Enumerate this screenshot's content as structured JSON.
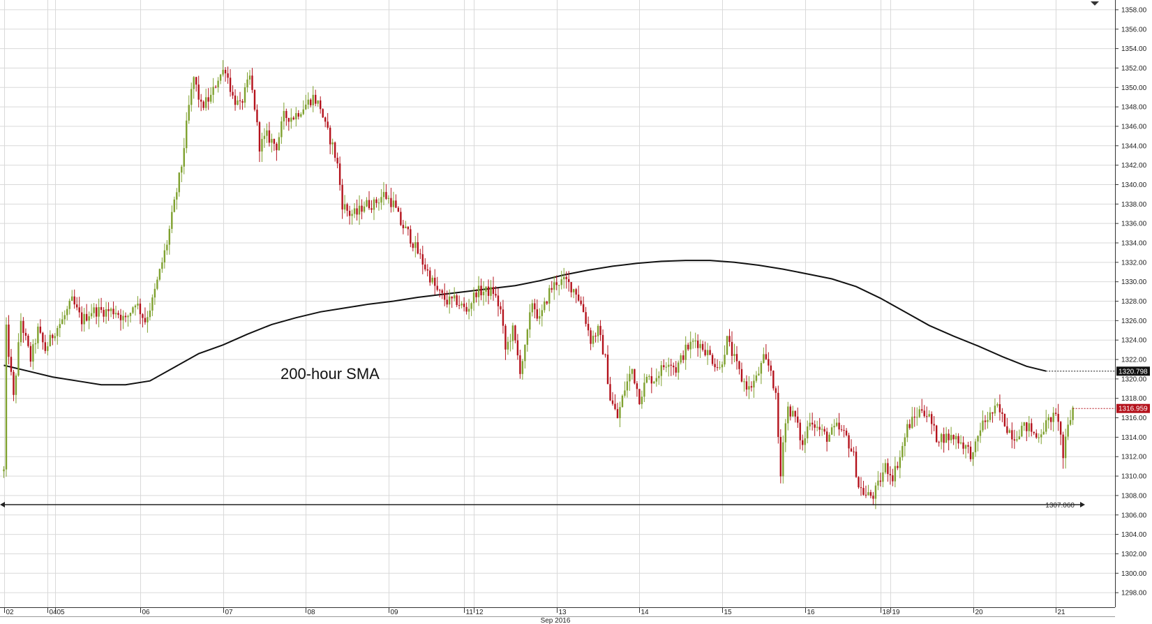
{
  "chart_data": {
    "type": "candlestick",
    "colors": {
      "up": "#7fa12f",
      "down": "#b4121c",
      "sma": "#111111",
      "grid": "#d9d9d9",
      "support": "#222222"
    },
    "y_axis": {
      "ylim": [
        1296.5,
        1359
      ],
      "ticks": [
        1298,
        1300,
        1302,
        1304,
        1306,
        1308,
        1310,
        1312,
        1314,
        1316,
        1318,
        1320,
        1322,
        1324,
        1326,
        1328,
        1330,
        1332,
        1334,
        1336,
        1338,
        1340,
        1342,
        1344,
        1346,
        1348,
        1350,
        1352,
        1354,
        1356,
        1358
      ],
      "tick_labels": [
        "1298.00",
        "1300.00",
        "1302.00",
        "1304.00",
        "1306.00",
        "1308.00",
        "1310.00",
        "1312.00",
        "1314.00",
        "1316.00",
        "1318.00",
        "1320.00",
        "1322.00",
        "1324.00",
        "1326.00",
        "1328.00",
        "1330.00",
        "1332.00",
        "1334.00",
        "1336.00",
        "1338.00",
        "1340.00",
        "1342.00",
        "1344.00",
        "1346.00",
        "1348.00",
        "1350.00",
        "1352.00",
        "1354.00",
        "1356.00",
        "1358.00"
      ]
    },
    "x_axis": {
      "caption": "Sep 2016",
      "days": [
        {
          "label": "02",
          "bar": 0
        },
        {
          "label": "04",
          "bar": 18
        },
        {
          "label": "05",
          "bar": 21
        },
        {
          "label": "06",
          "bar": 56
        },
        {
          "label": "07",
          "bar": 90
        },
        {
          "label": "08",
          "bar": 124
        },
        {
          "label": "09",
          "bar": 158
        },
        {
          "label": "11",
          "bar": 189
        },
        {
          "label": "12",
          "bar": 193
        },
        {
          "label": "13",
          "bar": 227
        },
        {
          "label": "14",
          "bar": 261
        },
        {
          "label": "15",
          "bar": 295
        },
        {
          "label": "16",
          "bar": 329
        },
        {
          "label": "18",
          "bar": 360
        },
        {
          "label": "19",
          "bar": 364
        },
        {
          "label": "20",
          "bar": 398
        },
        {
          "label": "21",
          "bar": 432
        }
      ]
    },
    "price_path": [
      [
        0,
        1310.5
      ],
      [
        1,
        1325
      ],
      [
        4,
        1318
      ],
      [
        7,
        1326
      ],
      [
        11,
        1322
      ],
      [
        14,
        1325
      ],
      [
        17,
        1323
      ],
      [
        21,
        1325
      ],
      [
        24,
        1326
      ],
      [
        28,
        1328
      ],
      [
        32,
        1326
      ],
      [
        36,
        1327
      ],
      [
        41,
        1327
      ],
      [
        46,
        1327
      ],
      [
        50,
        1326
      ],
      [
        54,
        1328
      ],
      [
        58,
        1326
      ],
      [
        61,
        1328
      ],
      [
        64,
        1331
      ],
      [
        67,
        1334
      ],
      [
        70,
        1338
      ],
      [
        73,
        1342
      ],
      [
        76,
        1348
      ],
      [
        78,
        1351
      ],
      [
        81,
        1348
      ],
      [
        85,
        1349
      ],
      [
        88,
        1351
      ],
      [
        91,
        1352
      ],
      [
        94,
        1349
      ],
      [
        97,
        1348
      ],
      [
        101,
        1351
      ],
      [
        103,
        1348
      ],
      [
        105,
        1344
      ],
      [
        108,
        1345
      ],
      [
        112,
        1344
      ],
      [
        115,
        1347
      ],
      [
        119,
        1347
      ],
      [
        123,
        1348
      ],
      [
        127,
        1349
      ],
      [
        130,
        1348
      ],
      [
        132,
        1346
      ],
      [
        135,
        1344
      ],
      [
        137,
        1342
      ],
      [
        139,
        1338
      ],
      [
        142,
        1337
      ],
      [
        145,
        1337
      ],
      [
        148,
        1338
      ],
      [
        152,
        1338
      ],
      [
        156,
        1339
      ],
      [
        160,
        1338
      ],
      [
        163,
        1336
      ],
      [
        166,
        1335
      ],
      [
        170,
        1333
      ],
      [
        174,
        1331
      ],
      [
        178,
        1329
      ],
      [
        182,
        1328
      ],
      [
        186,
        1328
      ],
      [
        190,
        1327
      ],
      [
        194,
        1329
      ],
      [
        198,
        1329
      ],
      [
        201,
        1329
      ],
      [
        204,
        1327
      ],
      [
        206,
        1323
      ],
      [
        209,
        1325
      ],
      [
        212,
        1321
      ],
      [
        214,
        1323
      ],
      [
        217,
        1328
      ],
      [
        220,
        1326
      ],
      [
        224,
        1329
      ],
      [
        227,
        1330
      ],
      [
        231,
        1330
      ],
      [
        235,
        1329
      ],
      [
        238,
        1327
      ],
      [
        241,
        1324
      ],
      [
        244,
        1325
      ],
      [
        247,
        1322
      ],
      [
        249,
        1318
      ],
      [
        252,
        1316
      ],
      [
        255,
        1319
      ],
      [
        258,
        1321
      ],
      [
        261,
        1318
      ],
      [
        264,
        1320
      ],
      [
        267,
        1320
      ],
      [
        270,
        1321
      ],
      [
        273,
        1322
      ],
      [
        276,
        1321
      ],
      [
        280,
        1323
      ],
      [
        284,
        1324
      ],
      [
        288,
        1323
      ],
      [
        291,
        1322
      ],
      [
        294,
        1321
      ],
      [
        297,
        1324
      ],
      [
        300,
        1322
      ],
      [
        303,
        1320
      ],
      [
        306,
        1319
      ],
      [
        309,
        1320
      ],
      [
        312,
        1322
      ],
      [
        315,
        1321
      ],
      [
        317,
        1318
      ],
      [
        319,
        1310
      ],
      [
        320,
        1314
      ],
      [
        322,
        1317
      ],
      [
        325,
        1316
      ],
      [
        328,
        1313
      ],
      [
        331,
        1316
      ],
      [
        334,
        1315
      ],
      [
        338,
        1314
      ],
      [
        342,
        1315
      ],
      [
        346,
        1314
      ],
      [
        349,
        1312
      ],
      [
        351,
        1309
      ],
      [
        354,
        1308
      ],
      [
        357,
        1308
      ],
      [
        359,
        1309
      ],
      [
        362,
        1311
      ],
      [
        365,
        1310
      ],
      [
        368,
        1312
      ],
      [
        371,
        1315
      ],
      [
        374,
        1316
      ],
      [
        377,
        1317
      ],
      [
        380,
        1316
      ],
      [
        383,
        1314
      ],
      [
        387,
        1314
      ],
      [
        391,
        1314
      ],
      [
        395,
        1313
      ],
      [
        398,
        1312
      ],
      [
        401,
        1315
      ],
      [
        404,
        1316
      ],
      [
        408,
        1317
      ],
      [
        412,
        1315
      ],
      [
        415,
        1314
      ],
      [
        418,
        1315
      ],
      [
        421,
        1315
      ],
      [
        424,
        1314
      ],
      [
        427,
        1315
      ],
      [
        430,
        1316
      ],
      [
        433,
        1316
      ],
      [
        435,
        1312
      ],
      [
        437,
        1315
      ],
      [
        439,
        1317
      ]
    ],
    "sma": {
      "name": "200-hour SMA",
      "points": [
        [
          0,
          1321.4
        ],
        [
          10,
          1320.8
        ],
        [
          20,
          1320.2
        ],
        [
          30,
          1319.8
        ],
        [
          40,
          1319.4
        ],
        [
          50,
          1319.4
        ],
        [
          60,
          1319.8
        ],
        [
          70,
          1321.2
        ],
        [
          80,
          1322.6
        ],
        [
          90,
          1323.5
        ],
        [
          100,
          1324.6
        ],
        [
          110,
          1325.6
        ],
        [
          120,
          1326.3
        ],
        [
          130,
          1326.9
        ],
        [
          140,
          1327.3
        ],
        [
          150,
          1327.7
        ],
        [
          160,
          1328.0
        ],
        [
          170,
          1328.4
        ],
        [
          180,
          1328.7
        ],
        [
          190,
          1329.0
        ],
        [
          200,
          1329.3
        ],
        [
          210,
          1329.6
        ],
        [
          220,
          1330.1
        ],
        [
          230,
          1330.7
        ],
        [
          240,
          1331.2
        ],
        [
          250,
          1331.6
        ],
        [
          260,
          1331.9
        ],
        [
          270,
          1332.1
        ],
        [
          280,
          1332.2
        ],
        [
          290,
          1332.2
        ],
        [
          300,
          1332.0
        ],
        [
          310,
          1331.7
        ],
        [
          320,
          1331.3
        ],
        [
          330,
          1330.8
        ],
        [
          340,
          1330.3
        ],
        [
          350,
          1329.5
        ],
        [
          360,
          1328.3
        ],
        [
          370,
          1326.9
        ],
        [
          380,
          1325.5
        ],
        [
          390,
          1324.4
        ],
        [
          400,
          1323.4
        ],
        [
          410,
          1322.3
        ],
        [
          420,
          1321.3
        ],
        [
          428,
          1320.8
        ]
      ]
    },
    "support": {
      "value": 1307.06,
      "label": "1307.060"
    },
    "sma_value_tag": {
      "value": 1320.798,
      "label": "1320.798",
      "bg": "#111111",
      "fg": "#ffffff"
    },
    "price_tag": {
      "value": 1316.959,
      "label": "1316.959",
      "bg": "#b4121c",
      "fg": "#ffffff"
    },
    "annotation": "200-hour SMA"
  }
}
